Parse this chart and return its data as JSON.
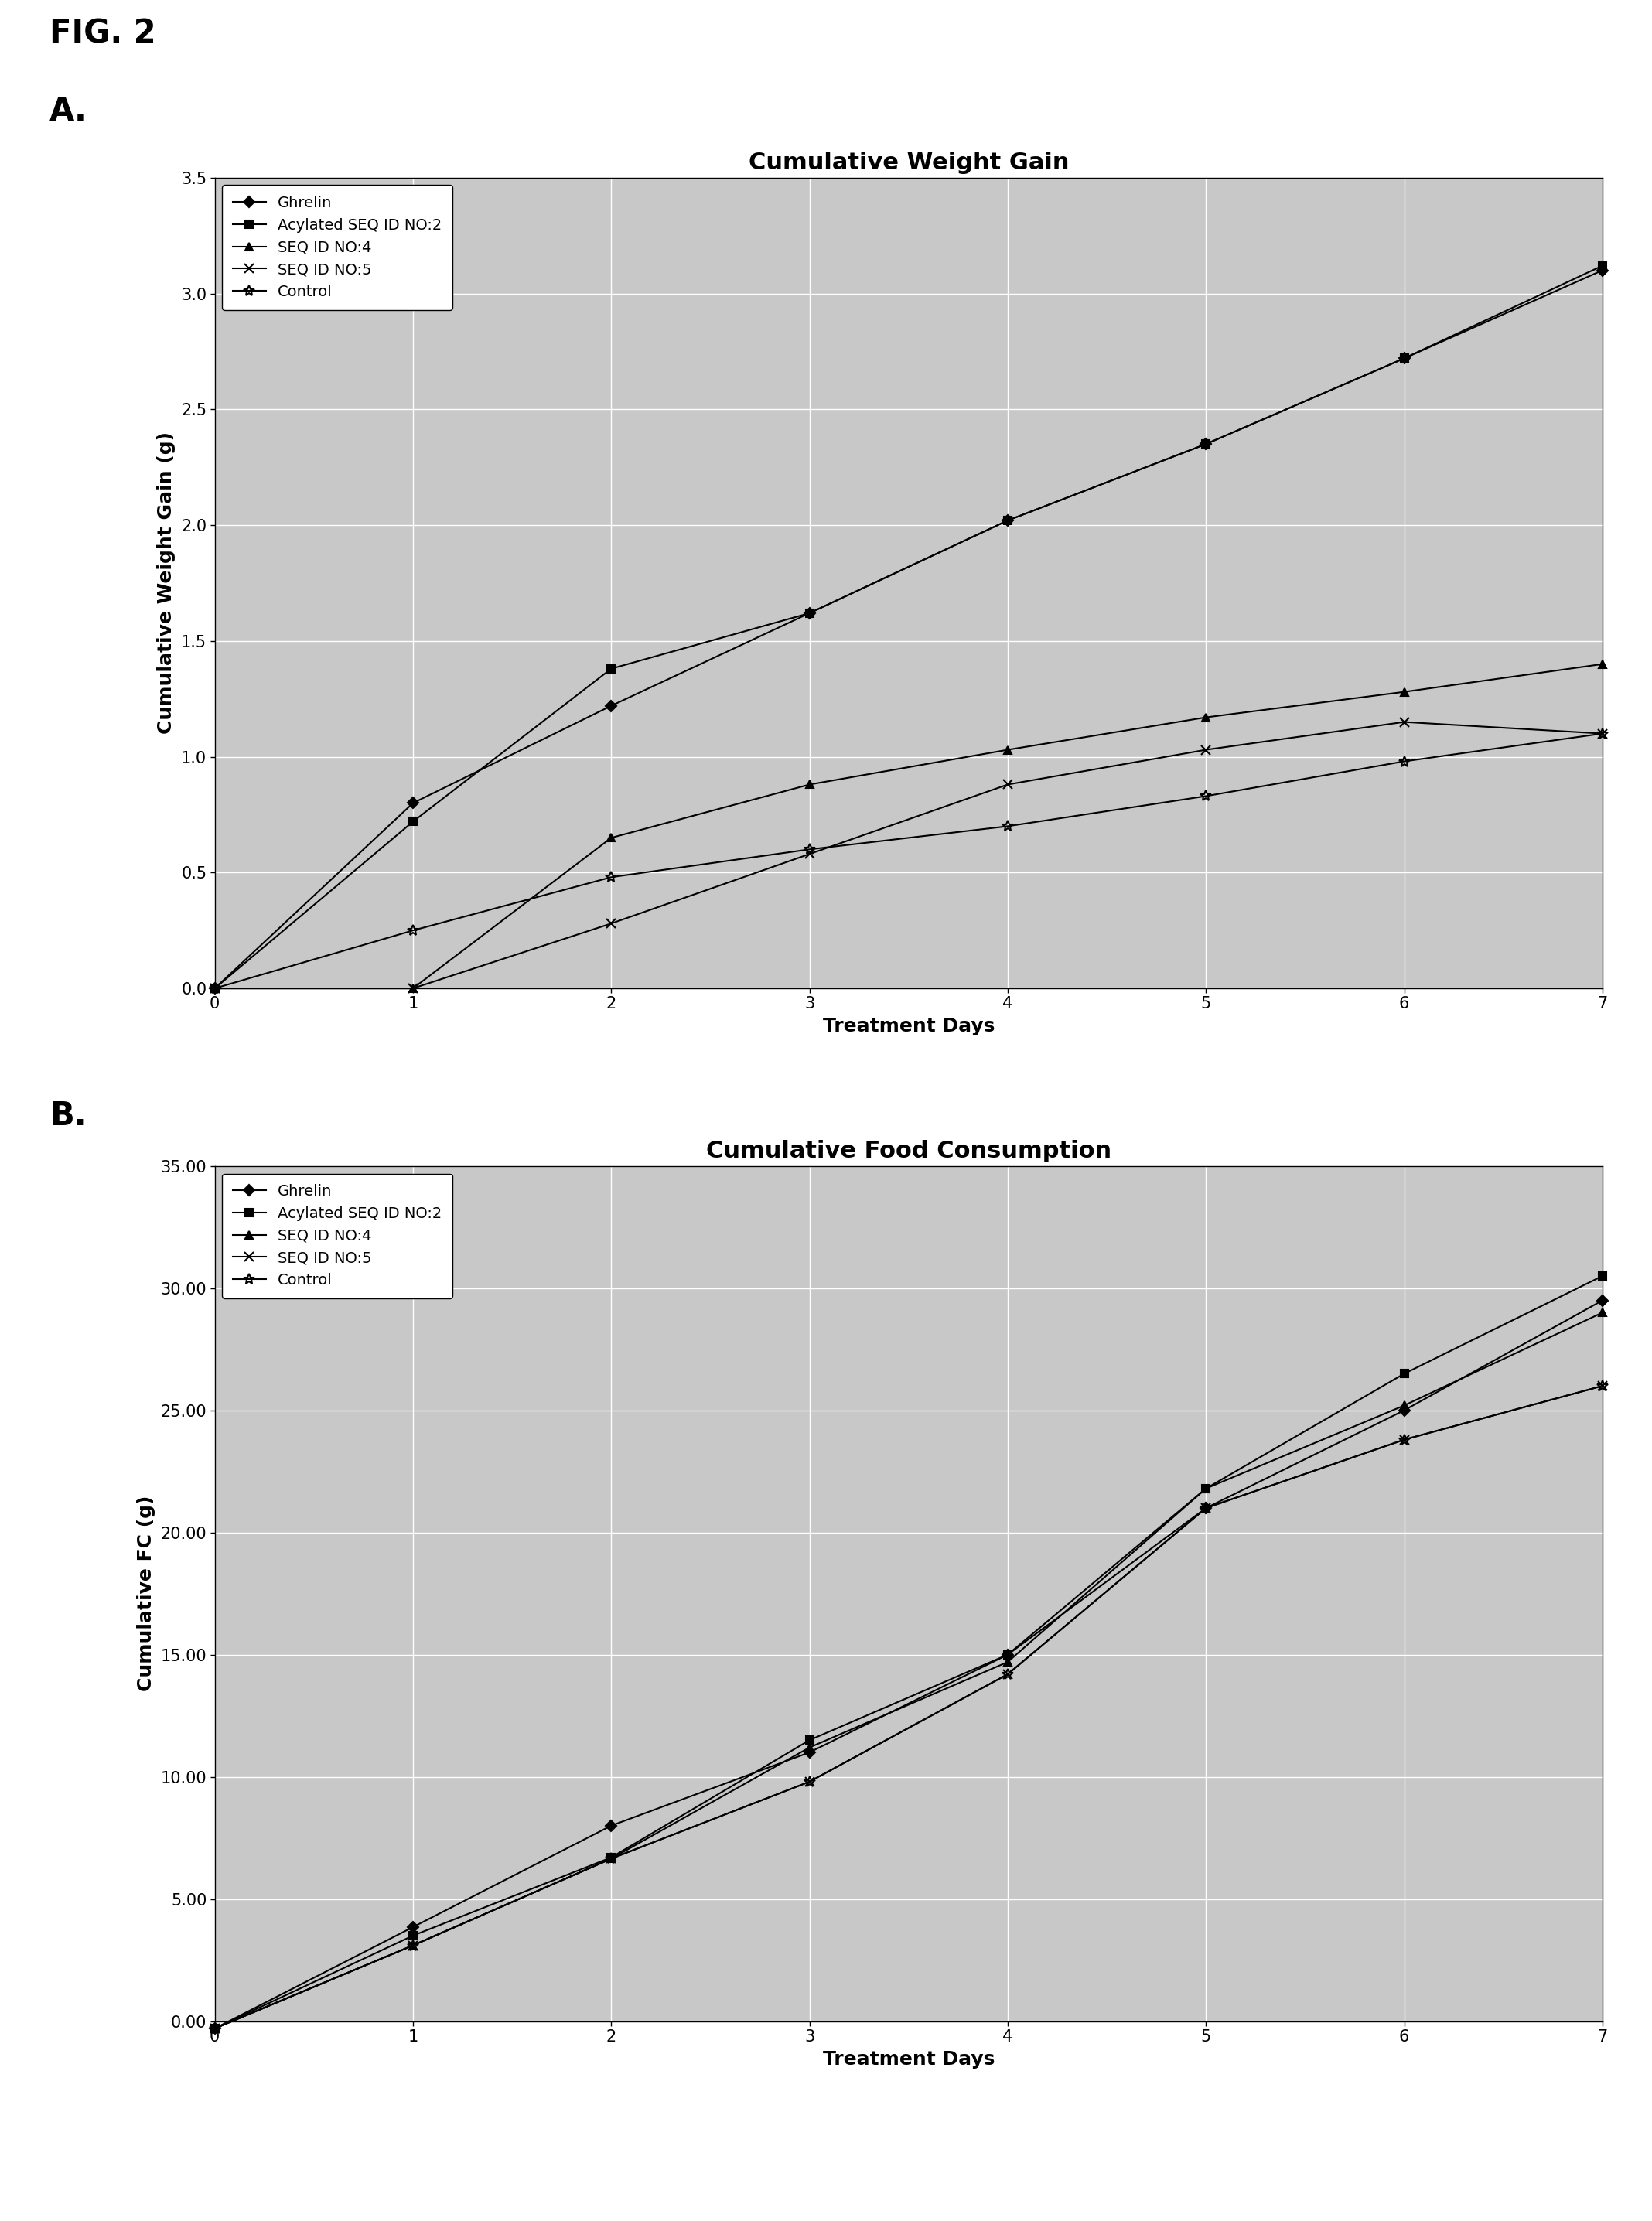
{
  "fig_label": "FIG. 2",
  "panel_A_label": "A.",
  "panel_B_label": "B.",
  "chartA_title": "Cumulative Weight Gain",
  "chartA_xlabel": "Treatment Days",
  "chartA_ylabel": "Cumulative Weight Gain (g)",
  "chartA_ylim": [
    0.0,
    3.5
  ],
  "chartA_yticks": [
    0.0,
    0.5,
    1.0,
    1.5,
    2.0,
    2.5,
    3.0,
    3.5
  ],
  "chartA_xlim": [
    0,
    7
  ],
  "chartA_xticks": [
    0,
    1,
    2,
    3,
    4,
    5,
    6,
    7
  ],
  "chartB_title": "Cumulative Food Consumption",
  "chartB_xlabel": "Treatment Days",
  "chartB_ylabel": "Cumulative FC (g)",
  "chartB_ylim": [
    0.0,
    35.0
  ],
  "chartB_yticks": [
    0.0,
    5.0,
    10.0,
    15.0,
    20.0,
    25.0,
    30.0,
    35.0
  ],
  "chartB_xlim": [
    0,
    7
  ],
  "chartB_xticks": [
    0,
    1,
    2,
    3,
    4,
    5,
    6,
    7
  ],
  "days": [
    0,
    1,
    2,
    3,
    4,
    5,
    6,
    7
  ],
  "series": [
    {
      "label": "Ghrelin",
      "marker": "D",
      "markersize": 7,
      "linewidth": 1.5,
      "A_values": [
        0.0,
        0.8,
        1.22,
        1.62,
        2.02,
        2.35,
        2.72,
        3.1
      ],
      "B_values": [
        -0.3,
        3.85,
        8.0,
        11.0,
        15.0,
        21.0,
        25.0,
        29.5
      ]
    },
    {
      "label": "Acylated SEQ ID NO:2",
      "marker": "s",
      "markersize": 7,
      "linewidth": 1.5,
      "A_values": [
        0.0,
        0.72,
        1.38,
        1.62,
        2.02,
        2.35,
        2.72,
        3.12
      ],
      "B_values": [
        -0.3,
        3.5,
        6.7,
        11.5,
        15.0,
        21.8,
        26.5,
        30.5
      ]
    },
    {
      "label": "SEQ ID NO:4",
      "marker": "^",
      "markersize": 7,
      "linewidth": 1.5,
      "A_values": [
        0.0,
        0.0,
        0.65,
        0.88,
        1.03,
        1.17,
        1.28,
        1.4
      ],
      "B_values": [
        -0.3,
        3.1,
        6.65,
        11.2,
        14.7,
        21.8,
        25.2,
        29.0
      ]
    },
    {
      "label": "SEQ ID NO:5",
      "marker": "x",
      "markersize": 9,
      "linewidth": 1.5,
      "A_values": [
        0.0,
        0.0,
        0.28,
        0.58,
        0.88,
        1.03,
        1.15,
        1.1
      ],
      "B_values": [
        -0.3,
        3.1,
        6.65,
        9.8,
        14.2,
        21.0,
        23.8,
        26.0
      ]
    },
    {
      "label": "Control",
      "marker": "*",
      "markersize": 10,
      "linewidth": 1.5,
      "A_values": [
        0.0,
        0.25,
        0.48,
        0.6,
        0.7,
        0.83,
        0.98,
        1.1
      ],
      "B_values": [
        -0.3,
        3.1,
        6.65,
        9.8,
        14.2,
        21.0,
        23.8,
        26.0
      ]
    }
  ],
  "line_color": "#000000",
  "plot_bg": "#c8c8c8",
  "grid_color": "#ffffff",
  "fig_bg": "#ffffff",
  "title_fontsize": 22,
  "label_fontsize": 18,
  "tick_fontsize": 15,
  "legend_fontsize": 14,
  "panel_fontsize": 30,
  "fig_label_fontsize": 30
}
